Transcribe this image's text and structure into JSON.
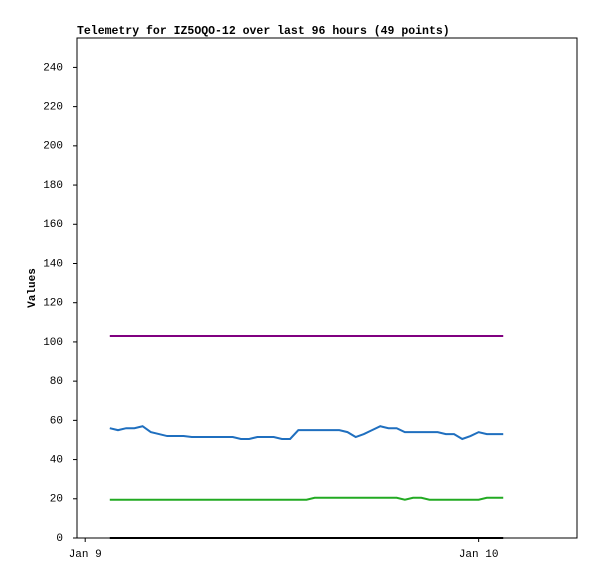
{
  "chart_data": {
    "type": "line",
    "title": "Telemetry for IZ5OQO-12 over last 96 hours (49 points)",
    "ylabel": "Values",
    "x": [
      1.5,
      2,
      2.5,
      3,
      3.5,
      4,
      4.5,
      5,
      5.5,
      6,
      6.5,
      7,
      7.5,
      8,
      8.5,
      9,
      9.5,
      10,
      10.5,
      11,
      11.5,
      12,
      12.5,
      13,
      13.5,
      14,
      14.5,
      15,
      15.5,
      16,
      16.5,
      17,
      17.5,
      18,
      18.5,
      19,
      19.5,
      20,
      20.5,
      21,
      21.5,
      22,
      22.5,
      23,
      23.5,
      24,
      24.5,
      25,
      25.5
    ],
    "xlim": [
      -0.5,
      30
    ],
    "xticks": [
      {
        "value": 0,
        "label": "Jan 9"
      },
      {
        "value": 24,
        "label": "Jan 10"
      }
    ],
    "ylim": [
      0,
      255
    ],
    "yticks": [
      0,
      20,
      40,
      60,
      80,
      100,
      120,
      140,
      160,
      180,
      200,
      220,
      240
    ],
    "series": [
      {
        "color": "#800080",
        "values": [
          103,
          103,
          103,
          103,
          103,
          103,
          103,
          103,
          103,
          103,
          103,
          103,
          103,
          103,
          103,
          103,
          103,
          103,
          103,
          103,
          103,
          103,
          103,
          103,
          103,
          103,
          103,
          103,
          103,
          103,
          103,
          103,
          103,
          103,
          103,
          103,
          103,
          103,
          103,
          103,
          103,
          103,
          103,
          103,
          103,
          103,
          103,
          103,
          103
        ]
      },
      {
        "color": "#1f6fbf",
        "values": [
          56,
          55,
          56,
          56,
          57,
          54,
          53,
          52,
          52,
          52,
          51.5,
          51.5,
          51.5,
          51.5,
          51.5,
          51.5,
          50.5,
          50.5,
          51.5,
          51.5,
          51.5,
          50.5,
          50.5,
          55,
          55,
          55,
          55,
          55,
          55,
          54,
          51.5,
          53,
          55,
          57,
          56,
          56,
          54,
          54,
          54,
          54,
          54,
          53,
          53,
          50.5,
          52,
          54,
          53,
          53,
          53
        ]
      },
      {
        "color": "#22aa22",
        "values": [
          19.5,
          19.5,
          19.5,
          19.5,
          19.5,
          19.5,
          19.5,
          19.5,
          19.5,
          19.5,
          19.5,
          19.5,
          19.5,
          19.5,
          19.5,
          19.5,
          19.5,
          19.5,
          19.5,
          19.5,
          19.5,
          19.5,
          19.5,
          19.5,
          19.5,
          20.5,
          20.5,
          20.5,
          20.5,
          20.5,
          20.5,
          20.5,
          20.5,
          20.5,
          20.5,
          20.5,
          19.5,
          20.5,
          20.5,
          19.5,
          19.5,
          19.5,
          19.5,
          19.5,
          19.5,
          19.5,
          20.5,
          20.5,
          20.5
        ]
      },
      {
        "color": "#000000",
        "values": [
          0,
          0,
          0,
          0,
          0,
          0,
          0,
          0,
          0,
          0,
          0,
          0,
          0,
          0,
          0,
          0,
          0,
          0,
          0,
          0,
          0,
          0,
          0,
          0,
          0,
          0,
          0,
          0,
          0,
          0,
          0,
          0,
          0,
          0,
          0,
          0,
          0,
          0,
          0,
          0,
          0,
          0,
          0,
          0,
          0,
          0,
          0,
          0,
          0
        ]
      }
    ]
  }
}
